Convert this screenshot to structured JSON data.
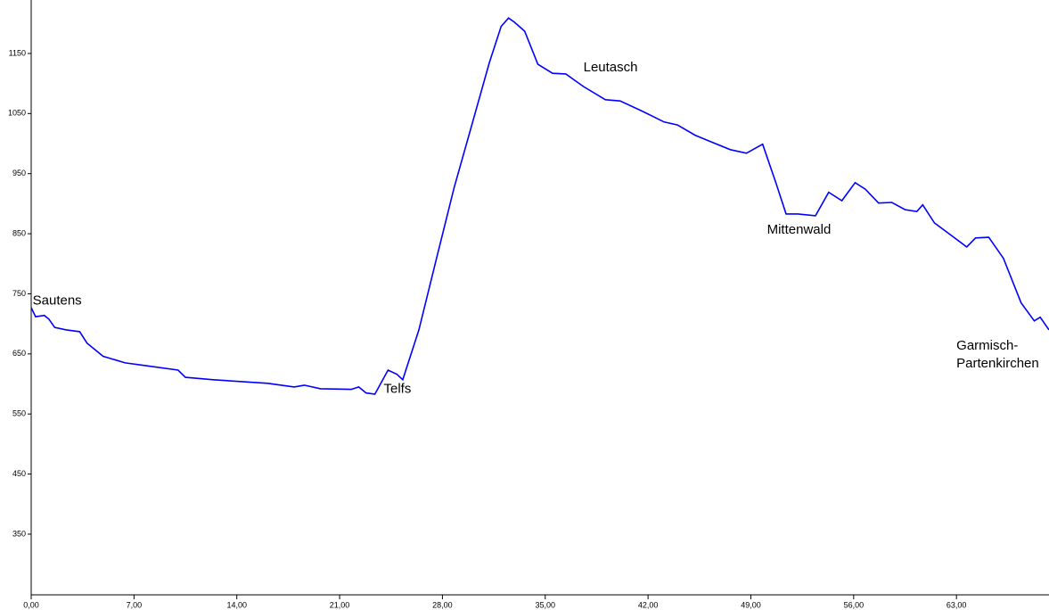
{
  "chart_data": {
    "type": "line",
    "x": [
      0,
      0.3,
      0.9,
      1.2,
      1.6,
      2.4,
      3.3,
      3.8,
      4.9,
      6.4,
      7.6,
      10.0,
      10.5,
      12.4,
      16.1,
      17.9,
      18.6,
      19.7,
      21.8,
      22.3,
      22.8,
      23.4,
      24.3,
      24.9,
      25.3,
      26.4,
      27.6,
      28.8,
      30.0,
      31.2,
      32.0,
      32.5,
      32.9,
      33.6,
      34.5,
      35.5,
      36.4,
      37.6,
      39.1,
      40.1,
      41.6,
      43.1,
      44.0,
      45.2,
      46.4,
      47.6,
      48.7,
      49.8,
      50.7,
      51.4,
      52.2,
      53.4,
      54.3,
      55.2,
      56.1,
      56.8,
      57.7,
      58.6,
      59.5,
      60.3,
      60.7,
      61.5,
      62.5,
      63.7,
      64.3,
      65.2,
      66.2,
      67.4,
      68.3,
      68.7,
      69.3
    ],
    "series": [
      {
        "color": "#0000ff",
        "values": [
          727,
          712,
          714,
          708,
          694,
          690,
          687,
          668,
          646,
          635,
          631,
          623,
          611,
          607,
          601,
          595,
          598,
          592,
          591,
          595,
          585,
          583,
          623,
          616,
          607,
          690,
          809,
          927,
          1031,
          1135,
          1195,
          1209,
          1202,
          1187,
          1132,
          1117,
          1116,
          1095,
          1073,
          1071,
          1054,
          1036,
          1031,
          1014,
          1002,
          990,
          984,
          999,
          935,
          883,
          883,
          880,
          919,
          905,
          935,
          924,
          901,
          902,
          890,
          887,
          898,
          868,
          850,
          828,
          843,
          844,
          809,
          735,
          705,
          711,
          690
        ]
      }
    ],
    "xlim": [
      0,
      69.3
    ],
    "ylim": [
      249,
      1239
    ],
    "xticks": [
      {
        "value": 0,
        "label": "0,00"
      },
      {
        "value": 7,
        "label": "7,00"
      },
      {
        "value": 14,
        "label": "14,00"
      },
      {
        "value": 21,
        "label": "21,00"
      },
      {
        "value": 28,
        "label": "28,00"
      },
      {
        "value": 35,
        "label": "35,00"
      },
      {
        "value": 42,
        "label": "42,00"
      },
      {
        "value": 49,
        "label": "49,00"
      },
      {
        "value": 56,
        "label": "56,00"
      },
      {
        "value": 63,
        "label": "63,00"
      }
    ],
    "yticks": [
      350,
      450,
      550,
      650,
      750,
      850,
      950,
      1050,
      1150
    ],
    "annotations": [
      {
        "text": [
          "Sautens"
        ],
        "x": 0.1,
        "y": 738
      },
      {
        "text": [
          "Telfs"
        ],
        "x": 24.0,
        "y": 591
      },
      {
        "text": [
          "Leutasch"
        ],
        "x": 37.6,
        "y": 1126
      },
      {
        "text": [
          "Mittenwald"
        ],
        "x": 50.1,
        "y": 856
      },
      {
        "text": [
          "Garmisch-",
          "Partenkirchen"
        ],
        "x": 63.0,
        "y": 663
      }
    ]
  }
}
